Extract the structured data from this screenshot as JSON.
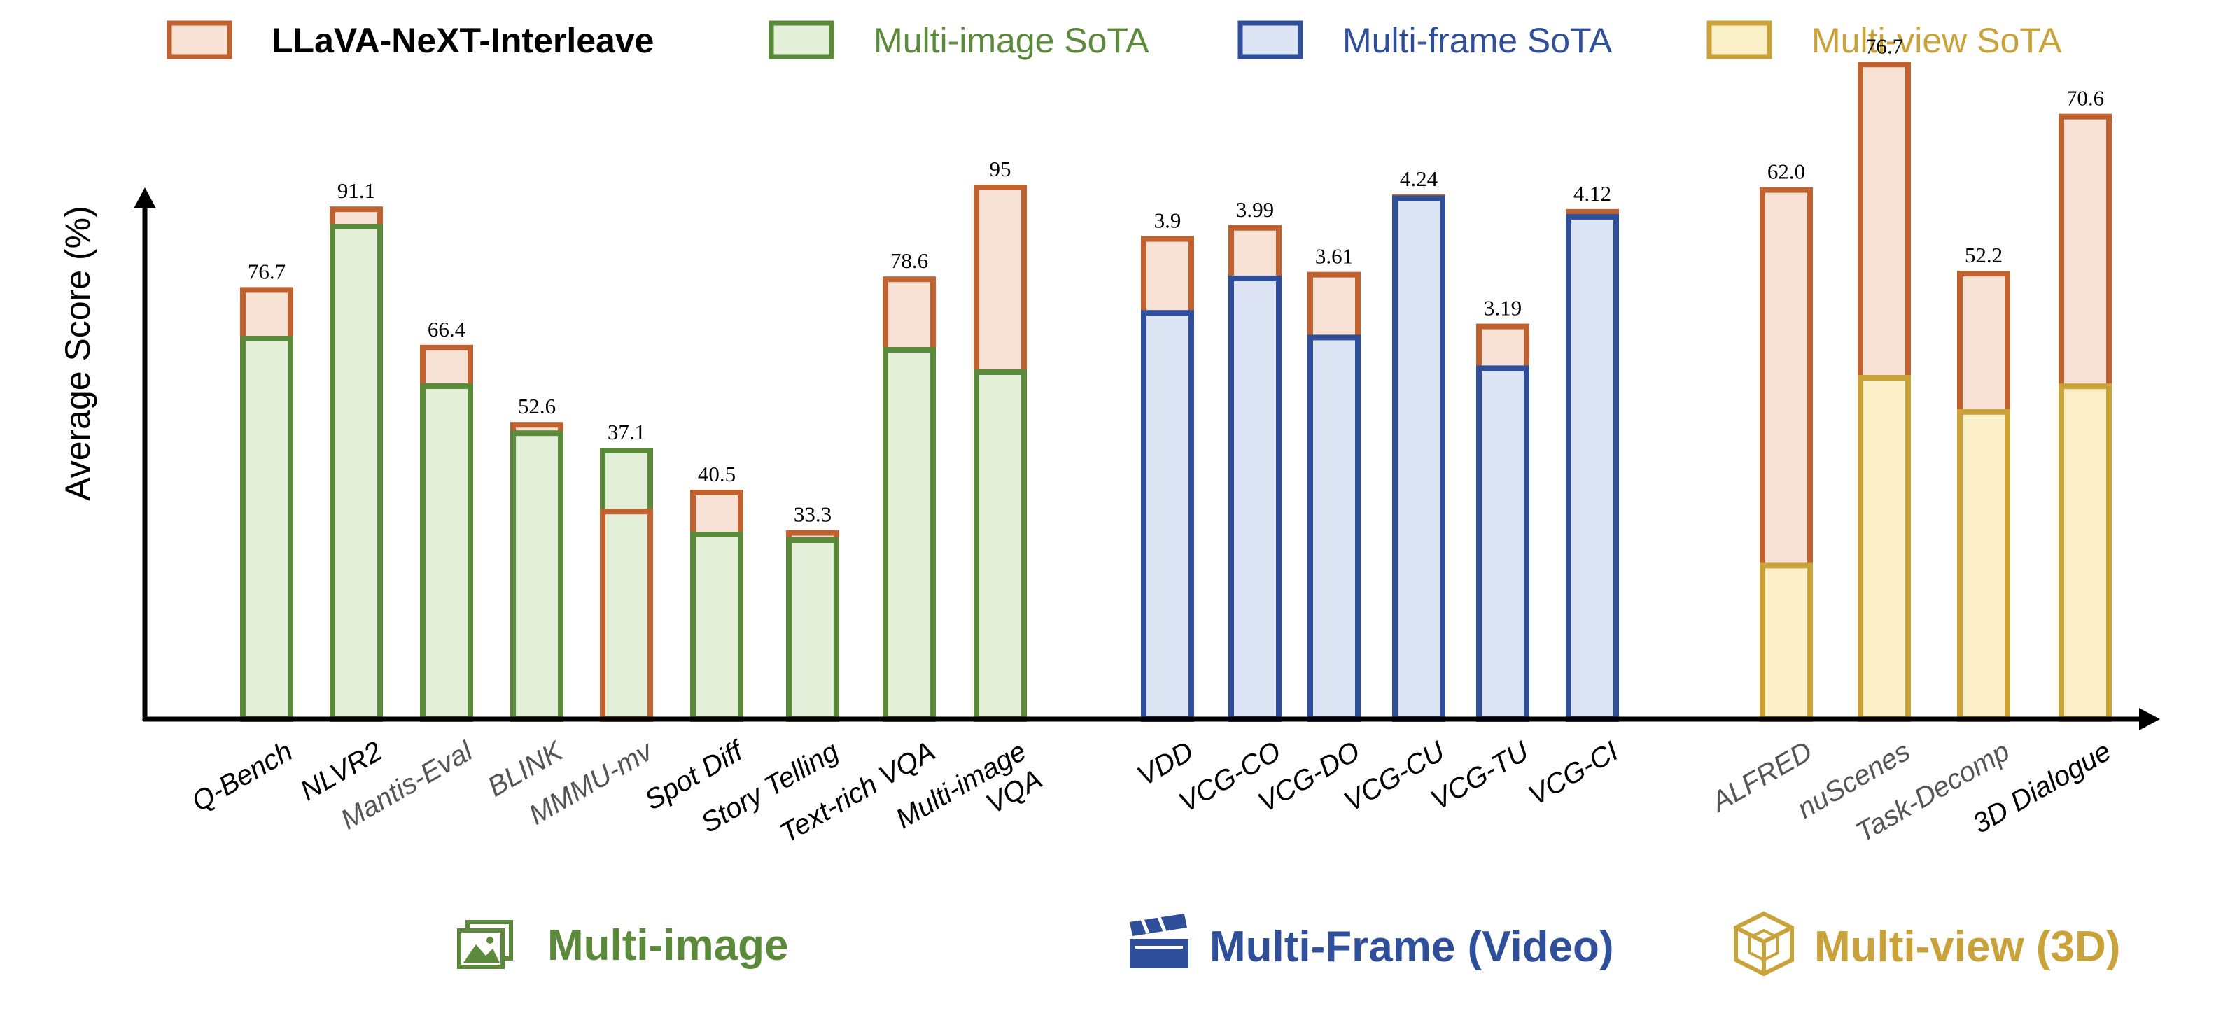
{
  "legend": [
    {
      "label": "LLaVA-NeXT-Interleave",
      "stroke": "#c0622f",
      "fill": "#f8e2d6",
      "text_color": "#000000",
      "bold": true
    },
    {
      "label": "Multi-image SoTA",
      "stroke": "#5b8a3a",
      "fill": "#e4efd9",
      "text_color": "#5b8a3a",
      "bold": false
    },
    {
      "label": "Multi-frame SoTA",
      "stroke": "#2f4f9a",
      "fill": "#dce3f2",
      "text_color": "#2f4f9a",
      "bold": false
    },
    {
      "label": "Multi-view SoTA",
      "stroke": "#c9a23a",
      "fill": "#fbefc8",
      "text_color": "#c9a23a",
      "bold": false
    }
  ],
  "groups": [
    {
      "label": "Multi-image",
      "color": "#5b8a3a",
      "icon": "images-icon"
    },
    {
      "label": "Multi-Frame (Video)",
      "color": "#2f4f9a",
      "icon": "clapperboard-icon"
    },
    {
      "label": "Multi-view (3D)",
      "color": "#c9a23a",
      "icon": "cube-icon"
    }
  ],
  "chart_data": {
    "type": "bar",
    "ylabel": "Average Score (%)",
    "xlabel": "",
    "ylim": [
      0,
      100
    ],
    "grid": false,
    "legend_position": "top",
    "categories": [
      {
        "label": "Q-Bench",
        "group": 0,
        "interleave": 76.7,
        "value_label": "76.7",
        "sota": 68.0,
        "gray": false
      },
      {
        "label": "NLVR2",
        "group": 0,
        "interleave": 91.1,
        "value_label": "91.1",
        "sota": 88.0,
        "gray": false
      },
      {
        "label": "Mantis-Eval",
        "group": 0,
        "interleave": 66.4,
        "value_label": "66.4",
        "sota": 59.5,
        "gray": true
      },
      {
        "label": "BLINK",
        "group": 0,
        "interleave": 52.6,
        "value_label": "52.6",
        "sota": 51.1,
        "gray": true
      },
      {
        "label": "MMMU-mv",
        "group": 0,
        "interleave": 37.1,
        "value_label": "37.1",
        "sota": 48.0,
        "gray": true
      },
      {
        "label": "Spot Diff",
        "group": 0,
        "interleave": 40.5,
        "value_label": "40.5",
        "sota": 33.0,
        "gray": false
      },
      {
        "label": "Story Telling",
        "group": 0,
        "interleave": 33.3,
        "value_label": "33.3",
        "sota": 32.0,
        "gray": false
      },
      {
        "label": "Text-rich VQA",
        "group": 0,
        "interleave": 78.6,
        "value_label": "78.6",
        "sota": 66.0,
        "gray": false
      },
      {
        "label": "Multi-image\nVQA",
        "group": 0,
        "interleave": 95,
        "value_label": "95",
        "sota": 62.0,
        "gray": false
      },
      {
        "label": "VDD",
        "group": 1,
        "interleave": 3.9,
        "value_label": "3.9",
        "sota": 3.3,
        "gray": false
      },
      {
        "label": "VCG-CO",
        "group": 1,
        "interleave": 3.99,
        "value_label": "3.99",
        "sota": 3.58,
        "gray": false
      },
      {
        "label": "VCG-DO",
        "group": 1,
        "interleave": 3.61,
        "value_label": "3.61",
        "sota": 3.1,
        "gray": false
      },
      {
        "label": "VCG-CU",
        "group": 1,
        "interleave": 4.24,
        "value_label": "4.24",
        "sota": 4.23,
        "gray": false
      },
      {
        "label": "VCG-TU",
        "group": 1,
        "interleave": 3.19,
        "value_label": "3.19",
        "sota": 2.85,
        "gray": false
      },
      {
        "label": "VCG-CI",
        "group": 1,
        "interleave": 4.12,
        "value_label": "4.12",
        "sota": 4.08,
        "gray": false
      },
      {
        "label": "ALFRED",
        "group": 2,
        "interleave": 62.0,
        "value_label": "62.0",
        "sota": 18.0,
        "gray": true
      },
      {
        "label": "nuScenes",
        "group": 2,
        "interleave": 76.7,
        "value_label": "76.7",
        "sota": 40.0,
        "gray": true
      },
      {
        "label": "Task-Decomp",
        "group": 2,
        "interleave": 52.2,
        "value_label": "52.2",
        "sota": 36.0,
        "gray": true
      },
      {
        "label": "3D Dialogue",
        "group": 2,
        "interleave": 70.6,
        "value_label": "70.6",
        "sota": 39.0,
        "gray": false
      }
    ]
  }
}
